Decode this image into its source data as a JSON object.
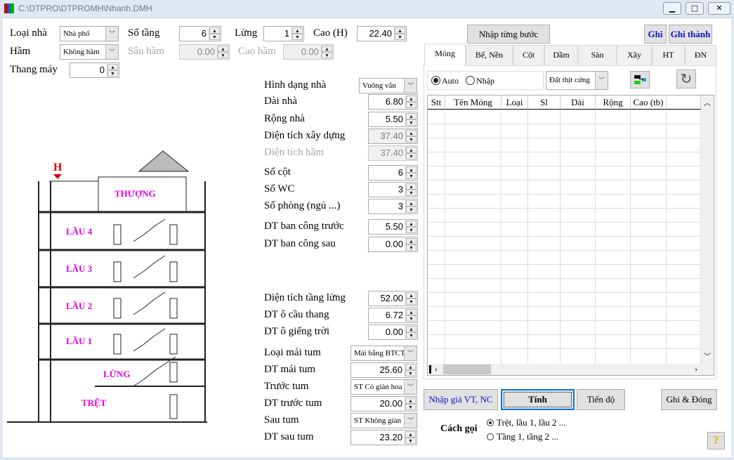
{
  "window": {
    "title": "C:\\DTPRO\\DTPROMH\\Nhanh.DMH",
    "minimize": "▁",
    "maximize": "□",
    "close": "✕"
  },
  "top": {
    "loai_nha": {
      "label": "Loại nhà",
      "value": "Nhà phố"
    },
    "so_tang": {
      "label": "Số tầng",
      "value": "6"
    },
    "lung": {
      "label": "Lửng",
      "value": "1"
    },
    "cao": {
      "label": "Cao (H)",
      "value": "22.40"
    },
    "ham": {
      "label": "Hầm",
      "value": "Không hầm"
    },
    "sau_ham": {
      "label": "Sâu hầm",
      "value": "0.00"
    },
    "cao_ham": {
      "label": "Cao hầm",
      "value": "0.00"
    },
    "thang_may": {
      "label": "Thang máy",
      "value": "0"
    }
  },
  "form": [
    {
      "label": "Hình dạng nhà",
      "value": "Vuông vắn",
      "type": "select"
    },
    {
      "label": "Dài nhà",
      "value": "6.80",
      "type": "num"
    },
    {
      "label": "Rộng nhà",
      "value": "5.50",
      "type": "num"
    },
    {
      "label": "Diện tích xây dựng",
      "value": "37.40",
      "type": "readonly"
    },
    {
      "label": "Diện tích hầm",
      "value": "37.40",
      "type": "disabled"
    },
    {
      "label": "Số cột",
      "value": "6",
      "type": "num"
    },
    {
      "label": "Số WC",
      "value": "3",
      "type": "num"
    },
    {
      "label": "Số phòng (ngủ ...)",
      "value": "3",
      "type": "num"
    },
    {
      "label": "DT ban công trước",
      "value": "5.50",
      "type": "num"
    },
    {
      "label": "DT ban công sau",
      "value": "0.00",
      "type": "num"
    },
    {
      "label": "Diện tích tầng lửng",
      "value": "52.00",
      "type": "num"
    },
    {
      "label": "DT ô cầu thang",
      "value": "6.72",
      "type": "num"
    },
    {
      "label": "DT ô giếng trời",
      "value": "0.00",
      "type": "num"
    },
    {
      "label": "Loại mái tum",
      "value": "Mái bằng BTCT",
      "type": "select"
    },
    {
      "label": "DT mái tum",
      "value": "25.60",
      "type": "num"
    },
    {
      "label": "Trước tum",
      "value": "ST Có giàn hoa",
      "type": "select"
    },
    {
      "label": "DT trước tum",
      "value": "20.00",
      "type": "num"
    },
    {
      "label": "Sau tum",
      "value": "ST Không giàn",
      "type": "select"
    },
    {
      "label": "DT sau tum",
      "value": "23.20",
      "type": "num"
    }
  ],
  "drawing": {
    "marker": "H",
    "floors": [
      "THƯỢNG",
      "LẦU 4",
      "LẦU 3",
      "LẦU 2",
      "LẦU 1",
      "LỬNG",
      "TRỆT"
    ],
    "label_color": "#e000e0",
    "marker_color": "#e00000"
  },
  "buttons": {
    "nhap_tung_buoc": "Nhập từng bước",
    "ghi": "Ghi",
    "ghi_thanh": "Ghi thành",
    "nhap_gia": "Nhập giá VT, NC",
    "tinh": "Tính",
    "tien_do": "Tiến độ",
    "ghi_dong": "Ghi & Đóng",
    "help": "?"
  },
  "tabs": [
    "Móng",
    "Bể, Nền",
    "Cột",
    "Dầm",
    "Sàn",
    "Xây",
    "HT",
    "ĐN"
  ],
  "active_tab": "Móng",
  "mong": {
    "radio_auto": "Auto",
    "radio_nhap": "Nhập",
    "selected": "Auto",
    "soil": "Đất thịt cứng",
    "columns": [
      "Stt",
      "Tên Móng",
      "Loại",
      "Sl",
      "Dài",
      "Rộng",
      "Cao (tb)",
      ""
    ],
    "rows": []
  },
  "cach_goi": {
    "label": "Cách gọi",
    "options": [
      "Trệt, lầu 1, lầu 2 ...",
      "Tầng 1, tầng 2 ..."
    ],
    "selected": "Trệt, lầu 1, lầu 2 ..."
  }
}
